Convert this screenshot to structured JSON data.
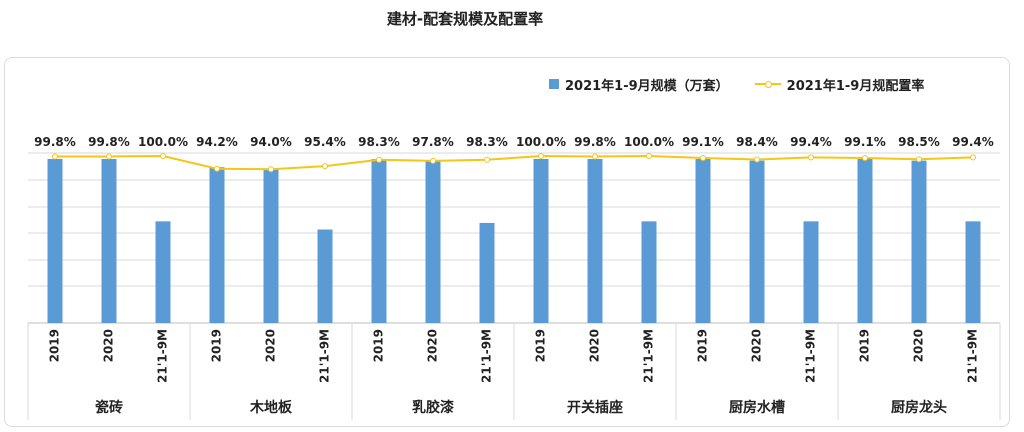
{
  "title": "建材-配套规模及配置率",
  "legend": {
    "bar_label": "2021年1-9月规模（万套）",
    "line_label": "2021年1-9月规配置率"
  },
  "colors": {
    "bar": "#5B9BD5",
    "line": "#F5C518",
    "grid": "#d9d9d9"
  },
  "chart_data": {
    "type": "bar",
    "groups": [
      "瓷砖",
      "木地板",
      "乳胶漆",
      "开关插座",
      "厨房水槽",
      "厨房龙头"
    ],
    "categories": [
      "2019",
      "2020",
      "21'1-9M",
      "2019",
      "2020",
      "21'1-9M",
      "2019",
      "2020",
      "21'1-9M",
      "2019",
      "2020",
      "21'1-9M",
      "2019",
      "2020",
      "21'1-9M",
      "2019",
      "2020",
      "21'1-9M"
    ],
    "bar_values_relative": [
      100,
      100,
      62,
      95,
      94,
      57,
      100,
      99,
      61,
      100,
      100,
      62,
      100,
      99,
      62,
      100,
      99,
      62
    ],
    "series": [
      {
        "type": "line",
        "values": [
          99.8,
          99.8,
          100.0,
          94.2,
          94.0,
          95.4,
          98.3,
          97.8,
          98.3,
          100.0,
          99.8,
          100.0,
          99.1,
          98.4,
          99.4,
          99.1,
          98.5,
          99.4
        ],
        "labels": [
          "99.8%",
          "99.8%",
          "100.0%",
          "94.2%",
          "94.0%",
          "95.4%",
          "98.3%",
          "97.8%",
          "98.3%",
          "100.0%",
          "99.8%",
          "100.0%",
          "99.1%",
          "98.4%",
          "99.4%",
          "99.1%",
          "98.5%",
          "99.4%"
        ]
      }
    ],
    "grid": true,
    "legend_position": "top-right"
  }
}
